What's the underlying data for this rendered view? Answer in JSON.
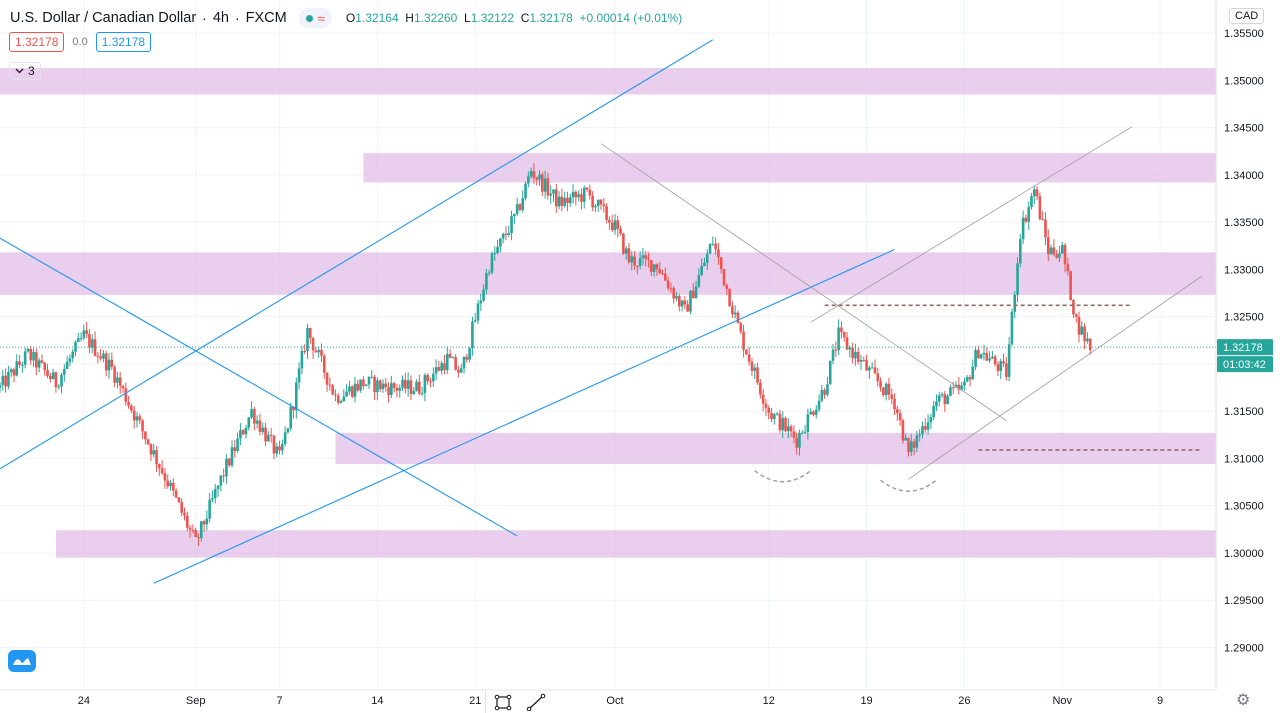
{
  "header": {
    "symbol": "U.S. Dollar / Canadian Dollar",
    "sep1": "·",
    "interval": "4h",
    "sep2": "·",
    "broker": "FXCM",
    "ohlc": {
      "open_key": "O",
      "open": "1.32164",
      "high_key": "H",
      "high": "1.32260",
      "low_key": "L",
      "low": "1.32122",
      "close_key": "C",
      "close": "1.32178",
      "change": "+0.00014 (+0.01%)"
    },
    "bid": "1.32178",
    "spread": "0.0",
    "ask": "1.32178",
    "indicator_count": "3",
    "currency_button": "CAD"
  },
  "colors": {
    "up": "#26a69a",
    "down": "#ef5350",
    "zone": "#e1bee7",
    "trend_blue": "#2196f3",
    "dashed_brown": "#8d6e63",
    "grid": "#f0f3fa",
    "axis_text": "#131722"
  },
  "icons": {
    "logo": "tradingview-logo-icon",
    "settings": "gear-icon",
    "measure": "date-range-icon",
    "draw": "trendline-icon"
  },
  "chart_data": {
    "type": "candlestick",
    "title": "",
    "y_axis_side": "right",
    "ylim": [
      1.2855,
      1.3585
    ],
    "y_ticks": [
      "1.35500",
      "1.35000",
      "1.34500",
      "1.34000",
      "1.33500",
      "1.33000",
      "1.32500",
      "1.32000",
      "1.31500",
      "1.31000",
      "1.30500",
      "1.30000",
      "1.29500",
      "1.29000"
    ],
    "x_ticks": [
      "24",
      "Sep",
      "7",
      "14",
      "21",
      "Oct",
      "12",
      "19",
      "26",
      "Nov",
      "9"
    ],
    "x_tick_dates": [
      "2020-08-24",
      "2020-09-01",
      "2020-09-07",
      "2020-09-14",
      "2020-09-21",
      "2020-10-01",
      "2020-10-12",
      "2020-10-19",
      "2020-10-26",
      "2020-11-02",
      "2020-11-09"
    ],
    "x_range": [
      "2020-08-18",
      "2020-11-13"
    ],
    "last_price_label": "1.32178",
    "countdown_label": "01:03:42",
    "last_price": 1.32178,
    "path_points": [
      [
        "2020-08-18",
        1.3175
      ],
      [
        "2020-08-20",
        1.321
      ],
      [
        "2020-08-22",
        1.318
      ],
      [
        "2020-08-24",
        1.323
      ],
      [
        "2020-08-26",
        1.3195
      ],
      [
        "2020-08-28",
        1.3135
      ],
      [
        "2020-08-30",
        1.3075
      ],
      [
        "2020-09-01",
        1.301
      ],
      [
        "2020-09-03",
        1.3085
      ],
      [
        "2020-09-05",
        1.315
      ],
      [
        "2020-09-07",
        1.31
      ],
      [
        "2020-09-08",
        1.316
      ],
      [
        "2020-09-09",
        1.3235
      ],
      [
        "2020-09-11",
        1.3165
      ],
      [
        "2020-09-13",
        1.318
      ],
      [
        "2020-09-15",
        1.3175
      ],
      [
        "2020-09-17",
        1.3175
      ],
      [
        "2020-09-19",
        1.3205
      ],
      [
        "2020-09-20",
        1.319
      ],
      [
        "2020-09-22",
        1.3305
      ],
      [
        "2020-09-24",
        1.336
      ],
      [
        "2020-09-25",
        1.3405
      ],
      [
        "2020-09-27",
        1.337
      ],
      [
        "2020-09-29",
        1.338
      ],
      [
        "2020-10-01",
        1.3345
      ],
      [
        "2020-10-02",
        1.331
      ],
      [
        "2020-10-04",
        1.3305
      ],
      [
        "2020-10-06",
        1.3255
      ],
      [
        "2020-10-08",
        1.333
      ],
      [
        "2020-10-10",
        1.323
      ],
      [
        "2020-10-12",
        1.315
      ],
      [
        "2020-10-14",
        1.312
      ],
      [
        "2020-10-16",
        1.3175
      ],
      [
        "2020-10-17",
        1.323
      ],
      [
        "2020-10-19",
        1.3195
      ],
      [
        "2020-10-21",
        1.316
      ],
      [
        "2020-10-22",
        1.3105
      ],
      [
        "2020-10-24",
        1.316
      ],
      [
        "2020-10-26",
        1.3175
      ],
      [
        "2020-10-27",
        1.3215
      ],
      [
        "2020-10-29",
        1.319
      ],
      [
        "2020-10-30",
        1.334
      ],
      [
        "2020-10-31",
        1.3385
      ],
      [
        "2020-11-01",
        1.332
      ],
      [
        "2020-11-02",
        1.332
      ],
      [
        "2020-11-03",
        1.3245
      ],
      [
        "2020-11-04",
        1.32178
      ]
    ],
    "zones": [
      {
        "y1": 1.3513,
        "y2": 1.3485,
        "x1": "2020-08-18",
        "x2": "2020-11-13"
      },
      {
        "y1": 1.3423,
        "y2": 1.3392,
        "x1": "2020-09-13",
        "x2": "2020-11-13"
      },
      {
        "y1": 1.3318,
        "y2": 1.3273,
        "x1": "2020-08-18",
        "x2": "2020-11-13"
      },
      {
        "y1": 1.3127,
        "y2": 1.3094,
        "x1": "2020-09-11",
        "x2": "2020-11-13"
      },
      {
        "y1": 1.3024,
        "y2": 1.2995,
        "x1": "2020-08-22",
        "x2": "2020-11-13"
      }
    ],
    "trendlines": [
      {
        "style": "blue",
        "x1": "2020-08-18",
        "y1": 1.3089,
        "x2": "2020-10-08",
        "y2": 1.3543
      },
      {
        "style": "blue",
        "x1": "2020-08-29",
        "y1": 1.2968,
        "x2": "2020-10-21",
        "y2": 1.3321
      },
      {
        "style": "blue",
        "x1": "2020-08-18",
        "y1": 1.3333,
        "x2": "2020-09-24",
        "y2": 1.3018
      },
      {
        "style": "thin-gray",
        "x1": "2020-09-30",
        "y1": 1.3433,
        "x2": "2020-10-29",
        "y2": 1.314
      },
      {
        "style": "thin-gray",
        "x1": "2020-10-15",
        "y1": 1.3244,
        "x2": "2020-11-07",
        "y2": 1.3451
      },
      {
        "style": "thin-gray",
        "x1": "2020-10-22",
        "y1": 1.3078,
        "x2": "2020-11-12",
        "y2": 1.3293
      }
    ],
    "dashed_levels": [
      {
        "y": 1.3262,
        "x1": "2020-10-16",
        "x2": "2020-11-07"
      },
      {
        "y": 1.3109,
        "x1": "2020-10-27",
        "x2": "2020-11-12"
      }
    ],
    "arcs": [
      {
        "x1": "2020-10-11",
        "x2": "2020-10-15",
        "y": 1.3087
      },
      {
        "x1": "2020-10-20",
        "x2": "2020-10-24",
        "y": 1.3077
      }
    ]
  }
}
